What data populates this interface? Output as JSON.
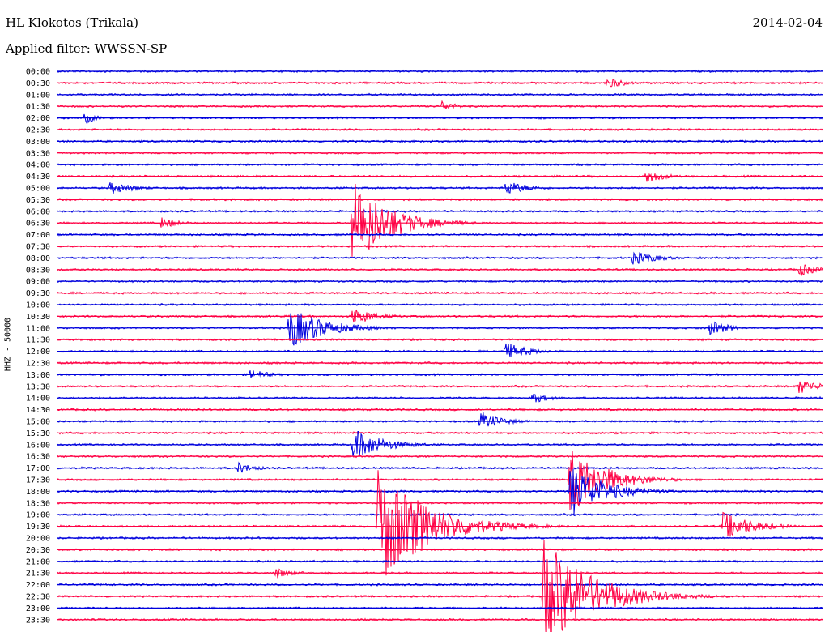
{
  "header": {
    "station": "HL Klokotos (Trikala)",
    "date": "2014-02-04",
    "filter": "Applied filter: WWSSN-SP"
  },
  "axis": {
    "ylabel": "HHZ - 50000"
  },
  "colors": {
    "even_row": "#0000dd",
    "odd_row": "#ff0044",
    "background": "#ffffff"
  },
  "chart_data": {
    "type": "line",
    "title": "HL Klokotos (Trikala)",
    "subtitle": "Applied filter: WWSSN-SP",
    "ylabel": "HHZ - 50000",
    "xlabel": "",
    "rows": [
      "00:00",
      "00:30",
      "01:00",
      "01:30",
      "02:00",
      "02:30",
      "03:00",
      "03:30",
      "04:00",
      "04:30",
      "05:00",
      "05:30",
      "06:00",
      "06:30",
      "07:00",
      "07:30",
      "08:00",
      "08:30",
      "09:00",
      "09:30",
      "10:00",
      "10:30",
      "11:00",
      "11:30",
      "12:00",
      "12:30",
      "13:00",
      "13:30",
      "14:00",
      "14:30",
      "15:00",
      "15:30",
      "16:00",
      "16:30",
      "17:00",
      "17:30",
      "18:00",
      "18:30",
      "19:00",
      "19:30",
      "20:00",
      "20:30",
      "21:00",
      "21:30",
      "22:00",
      "22:30",
      "23:00",
      "23:30"
    ],
    "row_minutes": 30,
    "events": [
      {
        "row": "00:30",
        "minute": 21.5,
        "amp": 8,
        "dur": 1.5
      },
      {
        "row": "01:30",
        "minute": 15,
        "amp": 7,
        "dur": 1.5
      },
      {
        "row": "02:00",
        "minute": 1,
        "amp": 9,
        "dur": 1
      },
      {
        "row": "04:30",
        "minute": 23,
        "amp": 10,
        "dur": 1.5
      },
      {
        "row": "05:00",
        "minute": 2,
        "amp": 9,
        "dur": 2
      },
      {
        "row": "05:00",
        "minute": 17.5,
        "amp": 10,
        "dur": 2
      },
      {
        "row": "06:30",
        "minute": 4,
        "amp": 8,
        "dur": 1.5
      },
      {
        "row": "06:30",
        "minute": 11.5,
        "amp": 60,
        "dur": 3
      },
      {
        "row": "08:00",
        "minute": 22.5,
        "amp": 10,
        "dur": 2
      },
      {
        "row": "08:30",
        "minute": 29,
        "amp": 10,
        "dur": 1.5
      },
      {
        "row": "10:30",
        "minute": 11.5,
        "amp": 12,
        "dur": 2
      },
      {
        "row": "11:00",
        "minute": 9,
        "amp": 28,
        "dur": 3
      },
      {
        "row": "11:00",
        "minute": 25.5,
        "amp": 12,
        "dur": 1.5
      },
      {
        "row": "12:00",
        "minute": 17.5,
        "amp": 12,
        "dur": 2
      },
      {
        "row": "13:00",
        "minute": 7.5,
        "amp": 8,
        "dur": 1.5
      },
      {
        "row": "13:30",
        "minute": 29,
        "amp": 10,
        "dur": 2
      },
      {
        "row": "14:00",
        "minute": 18.5,
        "amp": 8,
        "dur": 1.5
      },
      {
        "row": "15:00",
        "minute": 16.5,
        "amp": 12,
        "dur": 2
      },
      {
        "row": "16:00",
        "minute": 11.5,
        "amp": 22,
        "dur": 2.5
      },
      {
        "row": "17:00",
        "minute": 7,
        "amp": 8,
        "dur": 1.5
      },
      {
        "row": "17:30",
        "minute": 20,
        "amp": 45,
        "dur": 3
      },
      {
        "row": "18:00",
        "minute": 20,
        "amp": 35,
        "dur": 3
      },
      {
        "row": "19:30",
        "minute": 12.5,
        "amp": 80,
        "dur": 4
      },
      {
        "row": "19:30",
        "minute": 26,
        "amp": 20,
        "dur": 2.5
      },
      {
        "row": "21:30",
        "minute": 8.5,
        "amp": 8,
        "dur": 1.5
      },
      {
        "row": "22:30",
        "minute": 19,
        "amp": 75,
        "dur": 4
      }
    ]
  }
}
